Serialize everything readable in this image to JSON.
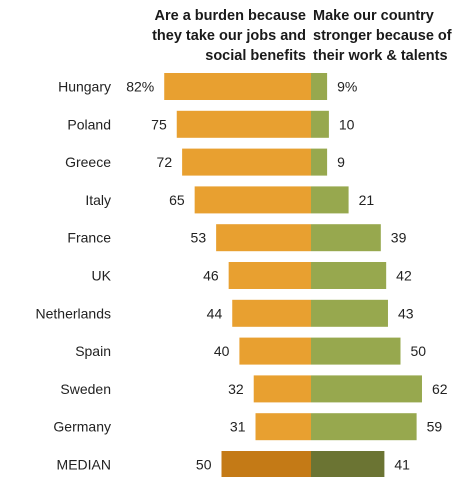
{
  "chart_data": {
    "type": "bar",
    "headers": {
      "burden": [
        "Are a burden because",
        "they take our jobs and",
        "social benefits"
      ],
      "stronger": [
        "Make our country",
        "stronger because of",
        "their work & talents"
      ]
    },
    "categories": [
      "Hungary",
      "Poland",
      "Greece",
      "Italy",
      "France",
      "UK",
      "Netherlands",
      "Spain",
      "Sweden",
      "Germany",
      "MEDIAN"
    ],
    "series": [
      {
        "key": "burden",
        "values": [
          82,
          75,
          72,
          65,
          53,
          46,
          44,
          40,
          32,
          31,
          50
        ],
        "labels": [
          "82%",
          "75",
          "72",
          "65",
          "53",
          "46",
          "44",
          "40",
          "32",
          "31",
          "50"
        ]
      },
      {
        "key": "stronger",
        "values": [
          9,
          10,
          9,
          21,
          39,
          42,
          43,
          50,
          62,
          59,
          41
        ],
        "labels": [
          "9%",
          "10",
          "9",
          "21",
          "39",
          "42",
          "43",
          "50",
          "62",
          "59",
          "41"
        ]
      }
    ],
    "colors": {
      "burden": "#e8a030",
      "stronger": "#97a84e",
      "median_burden": "#c47a16",
      "median_stronger": "#6b7433"
    }
  }
}
